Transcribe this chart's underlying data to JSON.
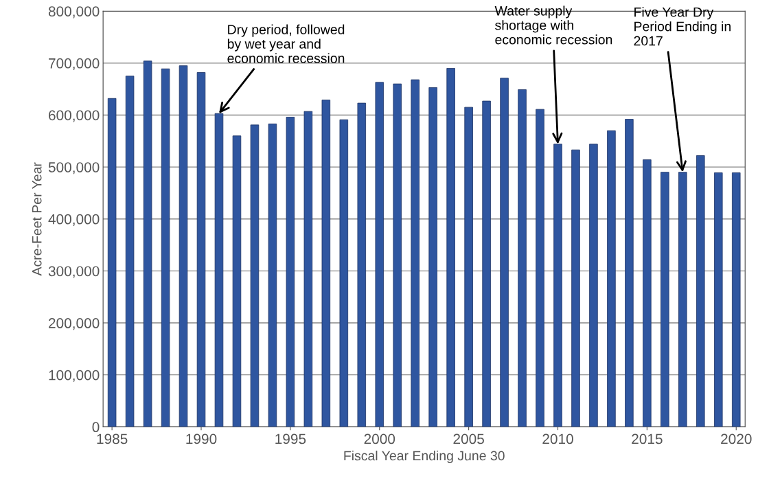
{
  "chart_data": {
    "type": "bar",
    "xlabel": "Fiscal Year Ending June 30",
    "ylabel": "Acre-Feet Per Year",
    "x": [
      1985,
      1986,
      1987,
      1988,
      1989,
      1990,
      1991,
      1992,
      1993,
      1994,
      1995,
      1996,
      1997,
      1998,
      1999,
      2000,
      2001,
      2002,
      2003,
      2004,
      2005,
      2006,
      2007,
      2008,
      2009,
      2010,
      2011,
      2012,
      2013,
      2014,
      2015,
      2016,
      2017,
      2018,
      2019,
      2020
    ],
    "values": [
      632000,
      675000,
      704000,
      689000,
      695000,
      682000,
      603000,
      560000,
      581000,
      583000,
      596000,
      607000,
      629000,
      591000,
      623000,
      663000,
      660000,
      668000,
      653000,
      690000,
      615000,
      627000,
      671000,
      649000,
      611000,
      544000,
      533000,
      544000,
      570000,
      592000,
      514000,
      490000,
      490000,
      522000,
      489000,
      489000
    ],
    "color": "#2f56a0",
    "xlim": [
      1984.5,
      2020.5
    ],
    "xticks": [
      1985,
      1990,
      1995,
      2000,
      2005,
      2010,
      2015,
      2020
    ],
    "ylim": [
      0,
      800000
    ],
    "yticks": [
      {
        "value": 0,
        "label": "0"
      },
      {
        "value": 100000,
        "label": "100,000"
      },
      {
        "value": 200000,
        "label": "200,000"
      },
      {
        "value": 300000,
        "label": "300,000"
      },
      {
        "value": 400000,
        "label": "400,000"
      },
      {
        "value": 500000,
        "label": "500,000"
      },
      {
        "value": 600000,
        "label": "600,000"
      },
      {
        "value": 700000,
        "label": "700,000"
      },
      {
        "value": 800000,
        "label": "800,000"
      }
    ],
    "grid": "y",
    "annotations": [
      {
        "text": "Dry period, followed\nby wet year and\neconomic recession",
        "x": 1991,
        "y": 603000
      },
      {
        "text": "Water supply\nshortage with\neconomic recession",
        "x": 2010,
        "y": 544000
      },
      {
        "text": "Five Year Dry\nPeriod Ending in\n2017",
        "x": 2017,
        "y": 490000
      }
    ]
  }
}
